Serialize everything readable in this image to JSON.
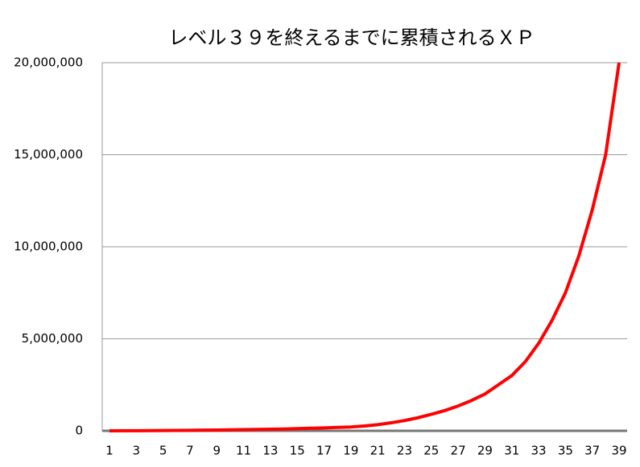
{
  "chart_data": {
    "type": "line",
    "title": "レベル３９を終えるまでに累積されるＸＰ",
    "categories": [
      1,
      null,
      3,
      null,
      5,
      null,
      7,
      null,
      9,
      null,
      11,
      null,
      13,
      null,
      15,
      null,
      17,
      null,
      19,
      null,
      21,
      null,
      23,
      null,
      25,
      null,
      27,
      null,
      29,
      null,
      31,
      null,
      33,
      null,
      35,
      null,
      37,
      null,
      39
    ],
    "values": [
      1000,
      3000,
      6000,
      10000,
      15000,
      21000,
      28000,
      36000,
      45000,
      55000,
      65000,
      75000,
      85000,
      100000,
      120000,
      140000,
      160000,
      185000,
      210000,
      260000,
      335000,
      435000,
      560000,
      710000,
      900000,
      1100000,
      1350000,
      1650000,
      2000000,
      2500000,
      3000000,
      3750000,
      4750000,
      6000000,
      7500000,
      9500000,
      12000000,
      15000000,
      20000000
    ],
    "color": "#ff0000",
    "ylim": [
      0,
      20000000
    ],
    "yticks": [
      0,
      {
        "value": 5000000,
        "label": "5,000,000"
      },
      {
        "value": 10000000,
        "label": "10,000,000"
      },
      {
        "value": 15000000,
        "label": "15,000,000"
      },
      {
        "value": 20000000,
        "label": "20,000,000"
      }
    ],
    "grid": true
  }
}
